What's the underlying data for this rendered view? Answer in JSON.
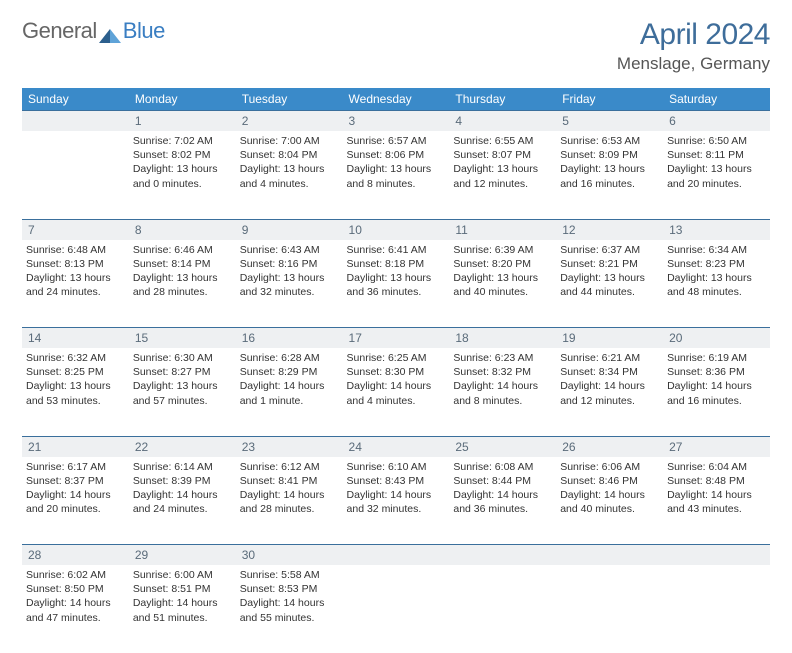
{
  "logo": {
    "text1": "General",
    "text2": "Blue"
  },
  "title": "April 2024",
  "location": "Menslage, Germany",
  "colors": {
    "header_bg": "#3a8ac9",
    "header_text": "#ffffff",
    "rule": "#3a6f9c",
    "numrow_bg": "#eef0f2",
    "title_color": "#3e6d9a",
    "body_text": "#333333"
  },
  "day_headers": [
    "Sunday",
    "Monday",
    "Tuesday",
    "Wednesday",
    "Thursday",
    "Friday",
    "Saturday"
  ],
  "weeks": [
    {
      "nums": [
        "",
        "1",
        "2",
        "3",
        "4",
        "5",
        "6"
      ],
      "cells": [
        null,
        {
          "sr": "Sunrise: 7:02 AM",
          "ss": "Sunset: 8:02 PM",
          "dl1": "Daylight: 13 hours",
          "dl2": "and 0 minutes."
        },
        {
          "sr": "Sunrise: 7:00 AM",
          "ss": "Sunset: 8:04 PM",
          "dl1": "Daylight: 13 hours",
          "dl2": "and 4 minutes."
        },
        {
          "sr": "Sunrise: 6:57 AM",
          "ss": "Sunset: 8:06 PM",
          "dl1": "Daylight: 13 hours",
          "dl2": "and 8 minutes."
        },
        {
          "sr": "Sunrise: 6:55 AM",
          "ss": "Sunset: 8:07 PM",
          "dl1": "Daylight: 13 hours",
          "dl2": "and 12 minutes."
        },
        {
          "sr": "Sunrise: 6:53 AM",
          "ss": "Sunset: 8:09 PM",
          "dl1": "Daylight: 13 hours",
          "dl2": "and 16 minutes."
        },
        {
          "sr": "Sunrise: 6:50 AM",
          "ss": "Sunset: 8:11 PM",
          "dl1": "Daylight: 13 hours",
          "dl2": "and 20 minutes."
        }
      ]
    },
    {
      "nums": [
        "7",
        "8",
        "9",
        "10",
        "11",
        "12",
        "13"
      ],
      "cells": [
        {
          "sr": "Sunrise: 6:48 AM",
          "ss": "Sunset: 8:13 PM",
          "dl1": "Daylight: 13 hours",
          "dl2": "and 24 minutes."
        },
        {
          "sr": "Sunrise: 6:46 AM",
          "ss": "Sunset: 8:14 PM",
          "dl1": "Daylight: 13 hours",
          "dl2": "and 28 minutes."
        },
        {
          "sr": "Sunrise: 6:43 AM",
          "ss": "Sunset: 8:16 PM",
          "dl1": "Daylight: 13 hours",
          "dl2": "and 32 minutes."
        },
        {
          "sr": "Sunrise: 6:41 AM",
          "ss": "Sunset: 8:18 PM",
          "dl1": "Daylight: 13 hours",
          "dl2": "and 36 minutes."
        },
        {
          "sr": "Sunrise: 6:39 AM",
          "ss": "Sunset: 8:20 PM",
          "dl1": "Daylight: 13 hours",
          "dl2": "and 40 minutes."
        },
        {
          "sr": "Sunrise: 6:37 AM",
          "ss": "Sunset: 8:21 PM",
          "dl1": "Daylight: 13 hours",
          "dl2": "and 44 minutes."
        },
        {
          "sr": "Sunrise: 6:34 AM",
          "ss": "Sunset: 8:23 PM",
          "dl1": "Daylight: 13 hours",
          "dl2": "and 48 minutes."
        }
      ]
    },
    {
      "nums": [
        "14",
        "15",
        "16",
        "17",
        "18",
        "19",
        "20"
      ],
      "cells": [
        {
          "sr": "Sunrise: 6:32 AM",
          "ss": "Sunset: 8:25 PM",
          "dl1": "Daylight: 13 hours",
          "dl2": "and 53 minutes."
        },
        {
          "sr": "Sunrise: 6:30 AM",
          "ss": "Sunset: 8:27 PM",
          "dl1": "Daylight: 13 hours",
          "dl2": "and 57 minutes."
        },
        {
          "sr": "Sunrise: 6:28 AM",
          "ss": "Sunset: 8:29 PM",
          "dl1": "Daylight: 14 hours",
          "dl2": "and 1 minute."
        },
        {
          "sr": "Sunrise: 6:25 AM",
          "ss": "Sunset: 8:30 PM",
          "dl1": "Daylight: 14 hours",
          "dl2": "and 4 minutes."
        },
        {
          "sr": "Sunrise: 6:23 AM",
          "ss": "Sunset: 8:32 PM",
          "dl1": "Daylight: 14 hours",
          "dl2": "and 8 minutes."
        },
        {
          "sr": "Sunrise: 6:21 AM",
          "ss": "Sunset: 8:34 PM",
          "dl1": "Daylight: 14 hours",
          "dl2": "and 12 minutes."
        },
        {
          "sr": "Sunrise: 6:19 AM",
          "ss": "Sunset: 8:36 PM",
          "dl1": "Daylight: 14 hours",
          "dl2": "and 16 minutes."
        }
      ]
    },
    {
      "nums": [
        "21",
        "22",
        "23",
        "24",
        "25",
        "26",
        "27"
      ],
      "cells": [
        {
          "sr": "Sunrise: 6:17 AM",
          "ss": "Sunset: 8:37 PM",
          "dl1": "Daylight: 14 hours",
          "dl2": "and 20 minutes."
        },
        {
          "sr": "Sunrise: 6:14 AM",
          "ss": "Sunset: 8:39 PM",
          "dl1": "Daylight: 14 hours",
          "dl2": "and 24 minutes."
        },
        {
          "sr": "Sunrise: 6:12 AM",
          "ss": "Sunset: 8:41 PM",
          "dl1": "Daylight: 14 hours",
          "dl2": "and 28 minutes."
        },
        {
          "sr": "Sunrise: 6:10 AM",
          "ss": "Sunset: 8:43 PM",
          "dl1": "Daylight: 14 hours",
          "dl2": "and 32 minutes."
        },
        {
          "sr": "Sunrise: 6:08 AM",
          "ss": "Sunset: 8:44 PM",
          "dl1": "Daylight: 14 hours",
          "dl2": "and 36 minutes."
        },
        {
          "sr": "Sunrise: 6:06 AM",
          "ss": "Sunset: 8:46 PM",
          "dl1": "Daylight: 14 hours",
          "dl2": "and 40 minutes."
        },
        {
          "sr": "Sunrise: 6:04 AM",
          "ss": "Sunset: 8:48 PM",
          "dl1": "Daylight: 14 hours",
          "dl2": "and 43 minutes."
        }
      ]
    },
    {
      "nums": [
        "28",
        "29",
        "30",
        "",
        "",
        "",
        ""
      ],
      "cells": [
        {
          "sr": "Sunrise: 6:02 AM",
          "ss": "Sunset: 8:50 PM",
          "dl1": "Daylight: 14 hours",
          "dl2": "and 47 minutes."
        },
        {
          "sr": "Sunrise: 6:00 AM",
          "ss": "Sunset: 8:51 PM",
          "dl1": "Daylight: 14 hours",
          "dl2": "and 51 minutes."
        },
        {
          "sr": "Sunrise: 5:58 AM",
          "ss": "Sunset: 8:53 PM",
          "dl1": "Daylight: 14 hours",
          "dl2": "and 55 minutes."
        },
        null,
        null,
        null,
        null
      ]
    }
  ]
}
